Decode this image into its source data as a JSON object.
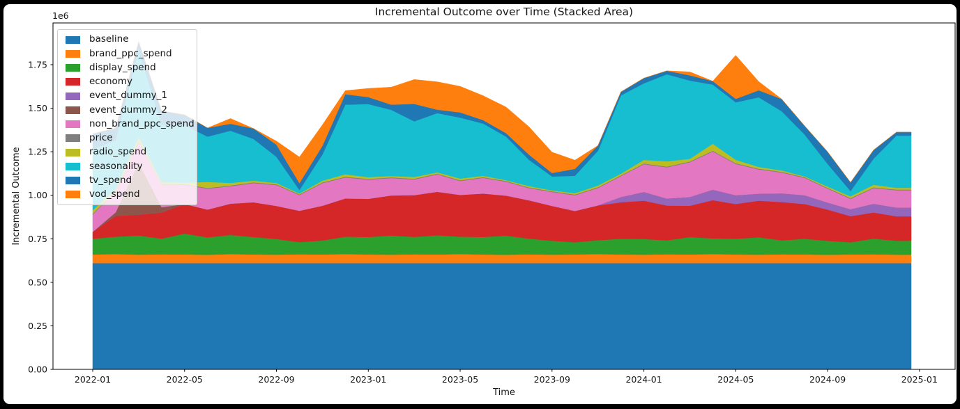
{
  "figure": {
    "title": "Incremental Outcome over Time (Stacked Area)",
    "xlabel": "Time",
    "ylabel": "Incremental Outcome",
    "y_offset_text": "1e6"
  },
  "chart_data": {
    "type": "area",
    "stacked": true,
    "title": "Incremental Outcome over Time (Stacked Area)",
    "xlabel": "Time",
    "ylabel": "Incremental Outcome",
    "y_scale_multiplier_label": "1e6",
    "grid": false,
    "background": "#ffffff",
    "frame_color": "#000000",
    "legend_position": "upper left",
    "ylim": [
      0,
      1990000
    ],
    "x_end_extension_months": 0.64,
    "x": [
      "2022-01",
      "2022-02",
      "2022-03",
      "2022-04",
      "2022-05",
      "2022-06",
      "2022-07",
      "2022-08",
      "2022-09",
      "2022-10",
      "2022-11",
      "2022-12",
      "2023-01",
      "2023-02",
      "2023-03",
      "2023-04",
      "2023-05",
      "2023-06",
      "2023-07",
      "2023-08",
      "2023-09",
      "2023-10",
      "2023-11",
      "2023-12",
      "2024-01",
      "2024-02",
      "2024-03",
      "2024-04",
      "2024-05",
      "2024-06",
      "2024-07",
      "2024-08",
      "2024-09",
      "2024-10",
      "2024-11",
      "2024-12"
    ],
    "x_ticks": [
      {
        "label": "2022-01",
        "month_index": 0
      },
      {
        "label": "2022-05",
        "month_index": 4
      },
      {
        "label": "2022-09",
        "month_index": 8
      },
      {
        "label": "2023-01",
        "month_index": 12
      },
      {
        "label": "2023-05",
        "month_index": 16
      },
      {
        "label": "2023-09",
        "month_index": 20
      },
      {
        "label": "2024-01",
        "month_index": 24
      },
      {
        "label": "2024-05",
        "month_index": 28
      },
      {
        "label": "2024-09",
        "month_index": 32
      },
      {
        "label": "2025-01",
        "month_index": 36
      }
    ],
    "y_ticks": [
      {
        "label": "0.00",
        "value": 0
      },
      {
        "label": "0.25",
        "value": 250000
      },
      {
        "label": "0.50",
        "value": 500000
      },
      {
        "label": "0.75",
        "value": 750000
      },
      {
        "label": "1.00",
        "value": 1000000
      },
      {
        "label": "1.25",
        "value": 1250000
      },
      {
        "label": "1.50",
        "value": 1500000
      },
      {
        "label": "1.75",
        "value": 1750000
      }
    ],
    "series": [
      {
        "name": "baseline",
        "color": "#1f77b4",
        "values": [
          610000,
          610000,
          610000,
          610000,
          610000,
          610000,
          610000,
          610000,
          610000,
          610000,
          610000,
          610000,
          610000,
          610000,
          610000,
          610000,
          610000,
          610000,
          610000,
          610000,
          610000,
          610000,
          610000,
          610000,
          610000,
          610000,
          610000,
          610000,
          610000,
          610000,
          610000,
          610000,
          610000,
          610000,
          610000,
          610000
        ]
      },
      {
        "name": "brand_ppc_spend",
        "color": "#ff7f0e",
        "values": [
          50000,
          52000,
          49000,
          51000,
          50000,
          48000,
          52000,
          50000,
          49000,
          51000,
          50000,
          52000,
          50000,
          49000,
          51000,
          50000,
          52000,
          50000,
          48000,
          51000,
          49000,
          50000,
          52000,
          50000,
          49000,
          51000,
          50000,
          52000,
          50000,
          49000,
          51000,
          50000,
          48000,
          50000,
          51000,
          49000
        ]
      },
      {
        "name": "display_spend",
        "color": "#2ca02c",
        "values": [
          90000,
          100000,
          110000,
          90000,
          120000,
          100000,
          110000,
          100000,
          90000,
          70000,
          80000,
          100000,
          100000,
          110000,
          100000,
          110000,
          100000,
          100000,
          110000,
          90000,
          80000,
          70000,
          80000,
          90000,
          90000,
          80000,
          100000,
          90000,
          90000,
          100000,
          80000,
          90000,
          80000,
          70000,
          90000,
          80000
        ]
      },
      {
        "name": "economy",
        "color": "#d62728",
        "values": [
          40000,
          120000,
          120000,
          150000,
          170000,
          160000,
          180000,
          200000,
          190000,
          180000,
          200000,
          220000,
          220000,
          230000,
          240000,
          250000,
          240000,
          250000,
          230000,
          220000,
          200000,
          180000,
          200000,
          210000,
          220000,
          200000,
          180000,
          220000,
          200000,
          210000,
          220000,
          200000,
          180000,
          150000,
          150000,
          140000
        ]
      },
      {
        "name": "event_dummy_1",
        "color": "#9467bd",
        "values": [
          0,
          0,
          0,
          0,
          0,
          0,
          0,
          0,
          0,
          0,
          0,
          0,
          0,
          0,
          0,
          0,
          0,
          0,
          0,
          0,
          0,
          0,
          0,
          30000,
          50000,
          40000,
          50000,
          60000,
          50000,
          40000,
          50000,
          50000,
          40000,
          40000,
          50000,
          50000
        ]
      },
      {
        "name": "event_dummy_2",
        "color": "#8c564b",
        "values": [
          0,
          20000,
          300000,
          30000,
          0,
          0,
          0,
          0,
          0,
          0,
          0,
          0,
          0,
          0,
          0,
          0,
          0,
          0,
          0,
          0,
          0,
          0,
          0,
          0,
          0,
          0,
          0,
          0,
          0,
          0,
          0,
          0,
          0,
          0,
          0,
          0
        ]
      },
      {
        "name": "non_brand_ppc_spend",
        "color": "#e377c2",
        "values": [
          100000,
          120000,
          120000,
          130000,
          110000,
          120000,
          100000,
          110000,
          120000,
          90000,
          130000,
          120000,
          110000,
          100000,
          90000,
          100000,
          80000,
          90000,
          80000,
          70000,
          80000,
          90000,
          100000,
          120000,
          160000,
          180000,
          200000,
          220000,
          180000,
          140000,
          120000,
          100000,
          80000,
          60000,
          90000,
          100000
        ]
      },
      {
        "name": "price",
        "color": "#7f7f7f",
        "values": [
          4000,
          4000,
          4000,
          4000,
          4000,
          4000,
          4000,
          4000,
          4000,
          4000,
          4000,
          4000,
          4000,
          4000,
          4000,
          4000,
          4000,
          4000,
          4000,
          4000,
          4000,
          4000,
          4000,
          4000,
          4000,
          4000,
          4000,
          4000,
          4000,
          4000,
          4000,
          4000,
          4000,
          4000,
          4000,
          4000
        ]
      },
      {
        "name": "radio_spend",
        "color": "#bcbd22",
        "values": [
          20000,
          10000,
          20000,
          10000,
          8000,
          35000,
          15000,
          10000,
          8000,
          5000,
          10000,
          15000,
          10000,
          8000,
          10000,
          8000,
          10000,
          8000,
          5000,
          8000,
          5000,
          8000,
          10000,
          10000,
          20000,
          30000,
          15000,
          40000,
          20000,
          10000,
          8000,
          5000,
          8000,
          10000,
          15000,
          10000
        ]
      },
      {
        "name": "seasonality",
        "color": "#17becf",
        "values": [
          350000,
          280000,
          500000,
          330000,
          330000,
          260000,
          300000,
          240000,
          150000,
          20000,
          150000,
          400000,
          420000,
          380000,
          320000,
          340000,
          350000,
          300000,
          250000,
          150000,
          80000,
          100000,
          200000,
          450000,
          440000,
          500000,
          450000,
          340000,
          330000,
          400000,
          340000,
          240000,
          130000,
          30000,
          150000,
          300000
        ]
      },
      {
        "name": "tv_spend",
        "color": "#1f77b4",
        "values": [
          90000,
          70000,
          50000,
          80000,
          60000,
          50000,
          40000,
          60000,
          70000,
          40000,
          50000,
          60000,
          40000,
          30000,
          100000,
          20000,
          30000,
          20000,
          20000,
          30000,
          20000,
          40000,
          30000,
          20000,
          30000,
          20000,
          30000,
          20000,
          20000,
          40000,
          70000,
          50000,
          70000,
          50000,
          50000,
          20000
        ]
      },
      {
        "name": "vod_spend",
        "color": "#ff7f0e",
        "values": [
          0,
          0,
          0,
          0,
          0,
          0,
          30000,
          0,
          20000,
          150000,
          120000,
          20000,
          50000,
          100000,
          140000,
          160000,
          150000,
          140000,
          150000,
          160000,
          120000,
          50000,
          0,
          0,
          0,
          0,
          20000,
          0,
          250000,
          50000,
          0,
          0,
          0,
          0,
          0,
          0
        ]
      }
    ]
  }
}
